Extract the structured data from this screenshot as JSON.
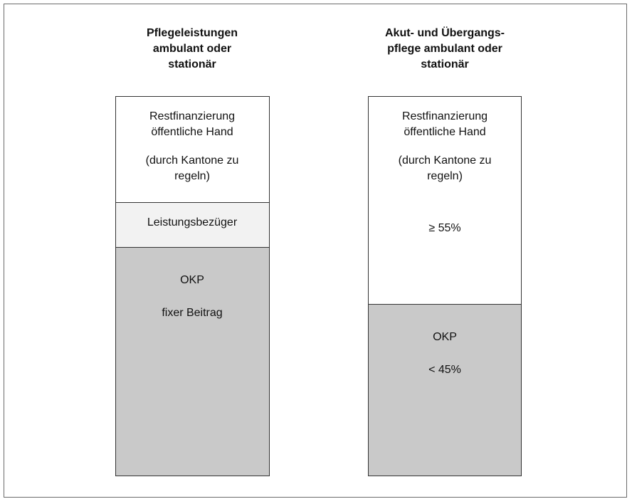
{
  "columns": [
    {
      "title": [
        "Pflegeleistungen",
        "ambulant oder",
        "stationär"
      ],
      "segments": [
        {
          "lines": [
            "Restfinanzierung",
            "öffentliche Hand",
            "(durch Kantone zu",
            "regeln)"
          ]
        },
        {
          "lines": [
            "Leistungsbezüger"
          ]
        },
        {
          "lines": [
            "OKP",
            "fixer Beitrag"
          ]
        }
      ]
    },
    {
      "title": [
        "Akut- und Übergangs-",
        "pflege ambulant oder",
        "stationär"
      ],
      "segments": [
        {
          "lines": [
            "Restfinanzierung",
            "öffentliche Hand",
            "(durch Kantone zu",
            "regeln)",
            "≥ 55%"
          ]
        },
        {
          "lines": [
            "OKP",
            "< 45%"
          ]
        }
      ]
    }
  ]
}
